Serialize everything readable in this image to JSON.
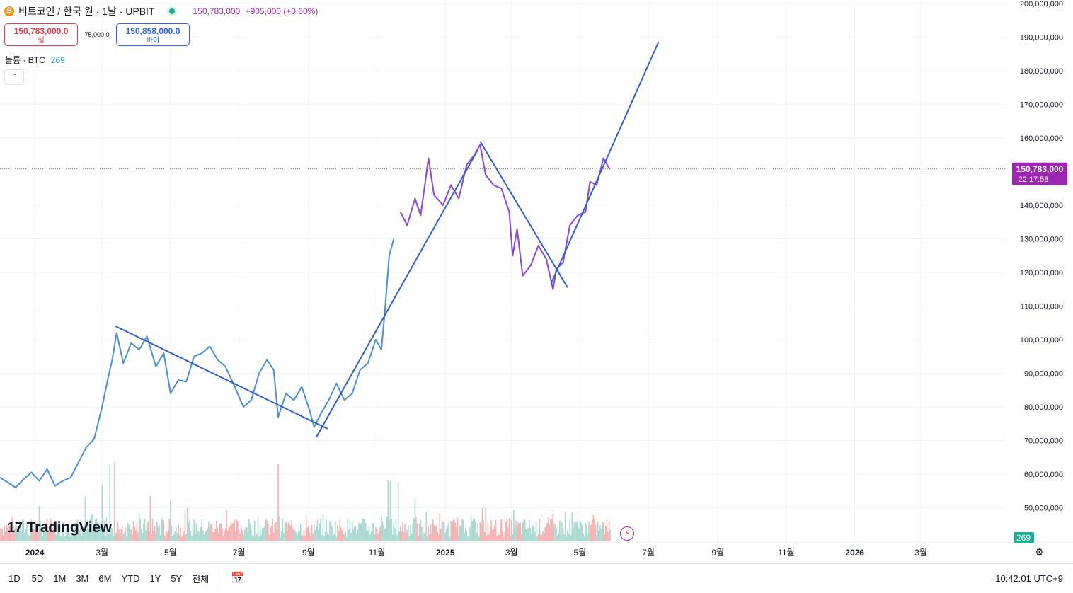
{
  "symbol": {
    "coin_glyph": "₿",
    "title": "비트코인 / 한국 원 · 1날 · UPBIT",
    "price": "150,783,000",
    "change": "+905,000 (+0.60%)"
  },
  "trade": {
    "sell_price": "150,783,000.0",
    "sell_label": "셀",
    "spread": "75,000.0",
    "buy_price": "150,858,000.0",
    "buy_label": "바이"
  },
  "volume_legend": {
    "label": "볼륨 · BTC",
    "value": "269"
  },
  "collapse_glyph": "⌃",
  "logo": {
    "mark": "17",
    "text": "TradingView"
  },
  "price_badge": {
    "price": "150,783,000",
    "countdown": "22:17:58"
  },
  "volume_badge": "269",
  "ranges": [
    "1D",
    "5D",
    "1M",
    "3M",
    "6M",
    "YTD",
    "1Y",
    "5Y",
    "전체"
  ],
  "clock": "10:42:01 UTC+9",
  "colors": {
    "line_early": "#4a8fd6",
    "line_late": "#8845e0",
    "trend": "#2f5fc8",
    "vol_up": "#a9d9d0",
    "vol_down": "#f3b2b4",
    "badge": "#9c27b0",
    "vol_badge": "#22ab94",
    "grid": "#f0f3fa"
  },
  "chart_data": {
    "type": "line",
    "title": "비트코인 / 한국 원 · 1날 · UPBIT",
    "y_axis": {
      "min": 40000000,
      "max": 200000000,
      "ticks": [
        50000000,
        60000000,
        70000000,
        80000000,
        90000000,
        100000000,
        110000000,
        120000000,
        130000000,
        140000000,
        150000000,
        160000000,
        170000000,
        180000000,
        190000000,
        200000000
      ],
      "tick_labels": [
        "50,000,000",
        "60,000,000",
        "70,000,000",
        "80,000,000",
        "90,000,000",
        "100,000,000",
        "110,000,000",
        "120,000,000",
        "130,000,000",
        "140,000,000",
        "150,000,000",
        "160,000,000",
        "170,000,000",
        "180,000,000",
        "190,000,000",
        "200,000,000"
      ]
    },
    "x_axis": {
      "start": "2023-12-01",
      "end": "2026-05-15",
      "ticks": [
        {
          "date": "2024-01-01",
          "label": "2024",
          "bold": true
        },
        {
          "date": "2024-03-01",
          "label": "3월"
        },
        {
          "date": "2024-05-01",
          "label": "5월"
        },
        {
          "date": "2024-07-01",
          "label": "7월"
        },
        {
          "date": "2024-09-01",
          "label": "9월"
        },
        {
          "date": "2024-11-01",
          "label": "11월"
        },
        {
          "date": "2025-01-01",
          "label": "2025",
          "bold": true
        },
        {
          "date": "2025-03-01",
          "label": "3월"
        },
        {
          "date": "2025-05-01",
          "label": "5월"
        },
        {
          "date": "2025-07-01",
          "label": "7월"
        },
        {
          "date": "2025-09-01",
          "label": "9월"
        },
        {
          "date": "2025-11-01",
          "label": "11월"
        },
        {
          "date": "2026-01-01",
          "label": "2026",
          "bold": true
        },
        {
          "date": "2026-03-01",
          "label": "3월"
        }
      ]
    },
    "series": [
      {
        "name": "BTC/KRW close",
        "points": [
          [
            "2023-12-01",
            59000000
          ],
          [
            "2023-12-08",
            57500000
          ],
          [
            "2023-12-15",
            56000000
          ],
          [
            "2023-12-22",
            58500000
          ],
          [
            "2023-12-29",
            60500000
          ],
          [
            "2024-01-05",
            58000000
          ],
          [
            "2024-01-12",
            61500000
          ],
          [
            "2024-01-19",
            56500000
          ],
          [
            "2024-01-26",
            58000000
          ],
          [
            "2024-02-02",
            59000000
          ],
          [
            "2024-02-09",
            63500000
          ],
          [
            "2024-02-16",
            68000000
          ],
          [
            "2024-02-23",
            70500000
          ],
          [
            "2024-03-01",
            80000000
          ],
          [
            "2024-03-06",
            88000000
          ],
          [
            "2024-03-10",
            94000000
          ],
          [
            "2024-03-14",
            102000000
          ],
          [
            "2024-03-20",
            93000000
          ],
          [
            "2024-03-27",
            99000000
          ],
          [
            "2024-04-03",
            97000000
          ],
          [
            "2024-04-10",
            101000000
          ],
          [
            "2024-04-18",
            92000000
          ],
          [
            "2024-04-25",
            96000000
          ],
          [
            "2024-05-01",
            84000000
          ],
          [
            "2024-05-08",
            88000000
          ],
          [
            "2024-05-15",
            87500000
          ],
          [
            "2024-05-22",
            95000000
          ],
          [
            "2024-05-29",
            96000000
          ],
          [
            "2024-06-05",
            98000000
          ],
          [
            "2024-06-12",
            94000000
          ],
          [
            "2024-06-19",
            92000000
          ],
          [
            "2024-06-26",
            87000000
          ],
          [
            "2024-07-05",
            80000000
          ],
          [
            "2024-07-12",
            82000000
          ],
          [
            "2024-07-19",
            90000000
          ],
          [
            "2024-07-26",
            94000000
          ],
          [
            "2024-08-01",
            91000000
          ],
          [
            "2024-08-05",
            77000000
          ],
          [
            "2024-08-12",
            84000000
          ],
          [
            "2024-08-19",
            82000000
          ],
          [
            "2024-08-26",
            86000000
          ],
          [
            "2024-09-02",
            79000000
          ],
          [
            "2024-09-06",
            74000000
          ],
          [
            "2024-09-12",
            78000000
          ],
          [
            "2024-09-19",
            82000000
          ],
          [
            "2024-09-26",
            87000000
          ],
          [
            "2024-10-03",
            82000000
          ],
          [
            "2024-10-10",
            84000000
          ],
          [
            "2024-10-17",
            91000000
          ],
          [
            "2024-10-24",
            93000000
          ],
          [
            "2024-10-31",
            100000000
          ],
          [
            "2024-11-05",
            97000000
          ],
          [
            "2024-11-08",
            108000000
          ],
          [
            "2024-11-12",
            125000000
          ],
          [
            "2024-11-16",
            130000000
          ],
          [
            "2024-11-22",
            138000000
          ],
          [
            "2024-11-28",
            134000000
          ],
          [
            "2024-12-05",
            142000000
          ],
          [
            "2024-12-10",
            137000000
          ],
          [
            "2024-12-17",
            154000000
          ],
          [
            "2024-12-22",
            143000000
          ],
          [
            "2024-12-30",
            140000000
          ],
          [
            "2025-01-06",
            146000000
          ],
          [
            "2025-01-13",
            142000000
          ],
          [
            "2025-01-20",
            152000000
          ],
          [
            "2025-01-27",
            155000000
          ],
          [
            "2025-02-01",
            158000000
          ],
          [
            "2025-02-06",
            149000000
          ],
          [
            "2025-02-13",
            146000000
          ],
          [
            "2025-02-20",
            145000000
          ],
          [
            "2025-02-27",
            138000000
          ],
          [
            "2025-03-02",
            125000000
          ],
          [
            "2025-03-06",
            133000000
          ],
          [
            "2025-03-11",
            119000000
          ],
          [
            "2025-03-18",
            122000000
          ],
          [
            "2025-03-25",
            128000000
          ],
          [
            "2025-04-01",
            124000000
          ],
          [
            "2025-04-07",
            115000000
          ],
          [
            "2025-04-10",
            121000000
          ],
          [
            "2025-04-16",
            123000000
          ],
          [
            "2025-04-22",
            134000000
          ],
          [
            "2025-04-29",
            137000000
          ],
          [
            "2025-05-06",
            138000000
          ],
          [
            "2025-05-10",
            147000000
          ],
          [
            "2025-05-16",
            146000000
          ],
          [
            "2025-05-22",
            154000000
          ],
          [
            "2025-05-27",
            151000000
          ],
          [
            "2025-05-28",
            150783000
          ]
        ]
      }
    ],
    "trend_lines": [
      {
        "from": [
          "2024-03-13",
          104000000
        ],
        "to": [
          "2024-09-18",
          73500000
        ]
      },
      {
        "from": [
          "2024-09-08",
          71000000
        ],
        "to": [
          "2025-01-30",
          156500000
        ]
      },
      {
        "from": [
          "2025-02-01",
          159000000
        ],
        "to": [
          "2025-04-20",
          115500000
        ]
      },
      {
        "from": [
          "2025-04-05",
          116500000
        ],
        "to": [
          "2025-07-10",
          188500000
        ]
      }
    ],
    "last_price": 150783000,
    "volume": {
      "ylim": [
        0,
        2000
      ],
      "shown_value": 269,
      "bars": [
        [
          "2024-02-15",
          620,
          "up"
        ],
        [
          "2024-03-01",
          780,
          "up"
        ],
        [
          "2024-03-08",
          1040,
          "up"
        ],
        [
          "2024-03-12",
          1090,
          "down"
        ],
        [
          "2024-04-13",
          620,
          "down"
        ],
        [
          "2024-05-01",
          560,
          "up"
        ],
        [
          "2024-06-20",
          430,
          "down"
        ],
        [
          "2024-08-05",
          1070,
          "down"
        ],
        [
          "2024-11-11",
          840,
          "up"
        ],
        [
          "2024-11-13",
          830,
          "up"
        ],
        [
          "2024-11-20",
          810,
          "up"
        ],
        [
          "2024-12-05",
          590,
          "up"
        ],
        [
          "2025-02-03",
          460,
          "down"
        ],
        [
          "2025-03-03",
          430,
          "up"
        ],
        [
          "2025-04-07",
          380,
          "down"
        ]
      ]
    }
  }
}
